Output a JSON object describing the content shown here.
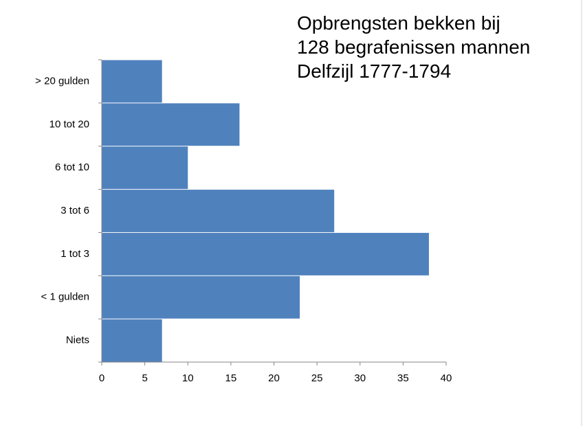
{
  "chart_data": {
    "type": "hbar",
    "title": "Opbrengsten bekken bij\n128 begrafenissen mannen\nDelfzijl 1777-1794",
    "categories": [
      "> 20 gulden",
      "10 tot 20",
      "6 tot 10",
      "3 tot 6",
      "1 tot 3",
      "< 1 gulden",
      "Niets"
    ],
    "values": [
      7,
      16,
      10,
      27,
      38,
      23,
      7
    ],
    "color": "#4f81bd",
    "xlim": [
      0,
      40
    ],
    "xticks": [
      0,
      5,
      10,
      15,
      20,
      25,
      30,
      35,
      40
    ],
    "grid": false
  }
}
